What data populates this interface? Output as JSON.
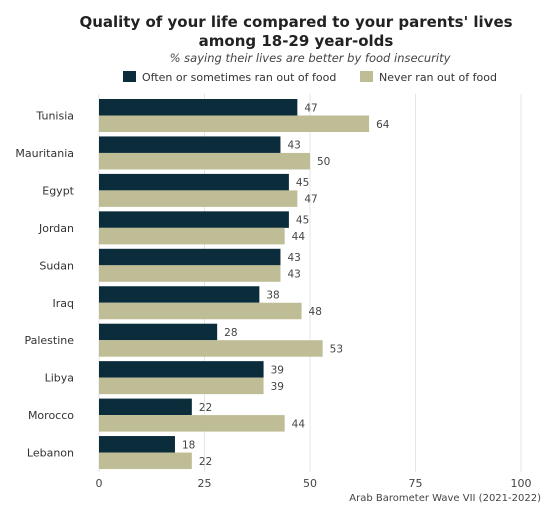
{
  "chart_data": {
    "type": "bar",
    "orientation": "horizontal",
    "title_line1": "Quality of your life compared to your parents' lives",
    "title_line2": "among 18-29 year-olds",
    "subtitle": "% saying their lives are better by food insecurity",
    "categories": [
      "Tunisia",
      "Mauritania",
      "Egypt",
      "Jordan",
      "Sudan",
      "Iraq",
      "Palestine",
      "Libya",
      "Morocco",
      "Lebanon"
    ],
    "series": [
      {
        "name": "Often or sometimes ran out of food",
        "color": "#0b2c3a",
        "values": [
          47,
          43,
          45,
          45,
          43,
          38,
          28,
          39,
          22,
          18
        ]
      },
      {
        "name": "Never ran out of food",
        "color": "#bfbd95",
        "values": [
          64,
          50,
          47,
          44,
          43,
          48,
          53,
          39,
          44,
          22
        ]
      }
    ],
    "xlim": [
      0,
      100
    ],
    "xticks": [
      "0",
      "25",
      "50",
      "75",
      "100"
    ],
    "xtick_values": [
      0,
      25,
      50,
      75,
      100
    ],
    "grid": true,
    "legend_position": "top",
    "source": "Arab Barometer Wave VII (2021-2022)"
  }
}
